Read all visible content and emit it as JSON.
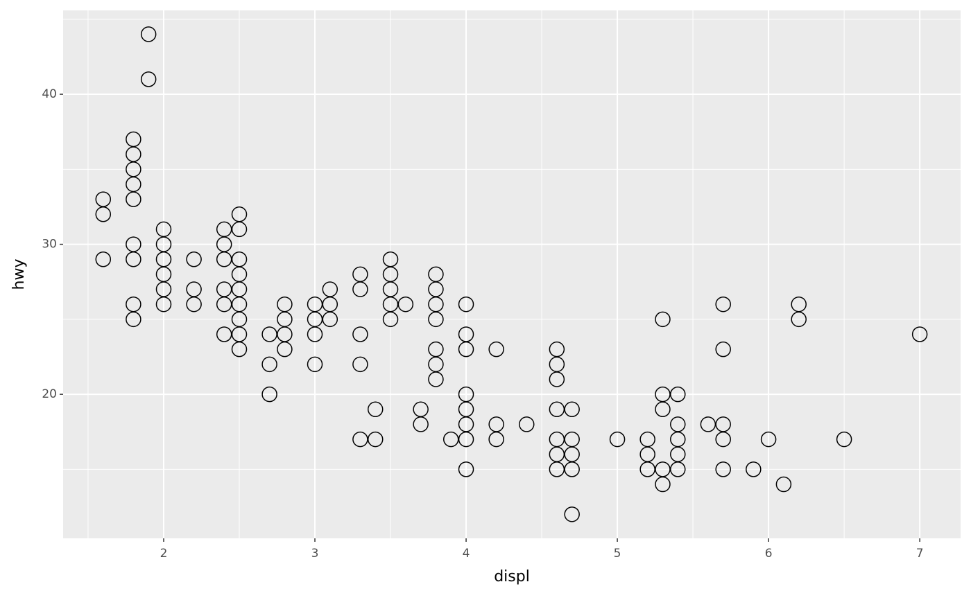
{
  "chart_data": {
    "type": "scatter",
    "x_label": "displ",
    "y_label": "hwy",
    "x": [
      1.6,
      1.6,
      1.6,
      1.8,
      1.8,
      1.8,
      1.8,
      1.8,
      1.8,
      1.8,
      1.8,
      1.8,
      1.9,
      1.9,
      2.0,
      2.0,
      2.0,
      2.0,
      2.0,
      2.0,
      2.2,
      2.2,
      2.2,
      2.4,
      2.4,
      2.4,
      2.4,
      2.4,
      2.4,
      2.5,
      2.5,
      2.5,
      2.5,
      2.5,
      2.5,
      2.5,
      2.5,
      2.5,
      2.7,
      2.7,
      2.7,
      2.8,
      2.8,
      2.8,
      2.8,
      3.0,
      3.0,
      3.0,
      3.0,
      3.1,
      3.1,
      3.1,
      3.3,
      3.3,
      3.3,
      3.3,
      3.3,
      3.4,
      3.4,
      3.5,
      3.5,
      3.5,
      3.5,
      3.5,
      3.6,
      3.7,
      3.7,
      3.8,
      3.8,
      3.8,
      3.8,
      3.8,
      3.8,
      3.8,
      3.9,
      4.0,
      4.0,
      4.0,
      4.0,
      4.0,
      4.0,
      4.0,
      4.0,
      4.2,
      4.2,
      4.2,
      4.4,
      4.6,
      4.6,
      4.6,
      4.6,
      4.6,
      4.6,
      4.6,
      4.7,
      4.7,
      4.7,
      4.7,
      4.7,
      5.0,
      5.2,
      5.2,
      5.2,
      5.3,
      5.3,
      5.3,
      5.3,
      5.3,
      5.4,
      5.4,
      5.4,
      5.4,
      5.4,
      5.6,
      5.7,
      5.7,
      5.7,
      5.7,
      5.7,
      5.9,
      6.0,
      6.1,
      6.2,
      6.2,
      6.5,
      7.0
    ],
    "values": [
      33,
      32,
      29,
      37,
      36,
      35,
      34,
      33,
      30,
      29,
      26,
      25,
      44,
      41,
      31,
      30,
      29,
      28,
      27,
      26,
      29,
      27,
      26,
      31,
      30,
      29,
      27,
      26,
      24,
      32,
      31,
      29,
      28,
      27,
      26,
      25,
      24,
      23,
      24,
      22,
      20,
      26,
      25,
      24,
      23,
      26,
      25,
      24,
      22,
      27,
      26,
      25,
      28,
      27,
      24,
      22,
      17,
      19,
      17,
      29,
      28,
      27,
      26,
      25,
      26,
      19,
      18,
      28,
      27,
      26,
      25,
      23,
      22,
      21,
      17,
      26,
      24,
      23,
      20,
      19,
      18,
      17,
      15,
      23,
      18,
      17,
      18,
      23,
      22,
      21,
      19,
      17,
      16,
      15,
      19,
      17,
      16,
      15,
      12,
      17,
      17,
      16,
      15,
      25,
      20,
      19,
      15,
      14,
      20,
      18,
      17,
      16,
      15,
      18,
      26,
      23,
      18,
      17,
      15,
      15,
      17,
      14,
      26,
      25,
      17,
      24
    ],
    "xlim": [
      1.335,
      7.27
    ],
    "xticks": [
      2,
      3,
      4,
      5,
      6,
      7
    ],
    "ylim": [
      10.4,
      45.59
    ],
    "yticks": [
      20,
      30,
      40
    ],
    "grid": true,
    "color": "#000000"
  }
}
